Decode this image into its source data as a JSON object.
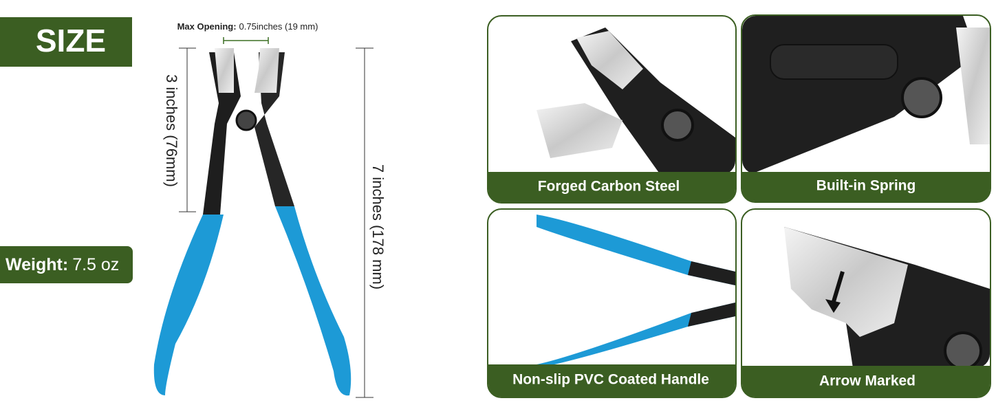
{
  "size_label": "SIZE",
  "max_opening": {
    "label": "Max Opening:",
    "value": "0.75inches (19 mm)"
  },
  "jaw_length": "3 inches (76mm)",
  "total_length": "7 inches (178 mm)",
  "weight": {
    "label": "Weight:",
    "value": "7.5 oz"
  },
  "features": [
    "Forged Carbon Steel",
    "Built-in Spring",
    "Non-slip PVC Coated Handle",
    "Arrow Marked"
  ]
}
